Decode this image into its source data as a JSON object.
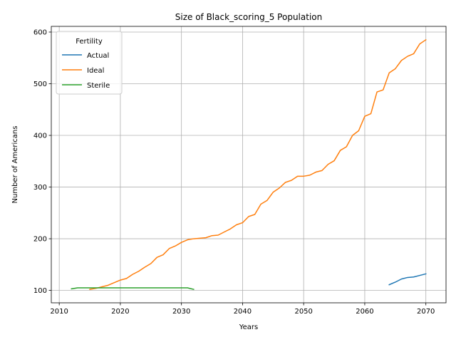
{
  "chart_data": {
    "type": "line",
    "title": "Size of Black_scoring_5 Population",
    "xlabel": "Years",
    "ylabel": "Number of Americans",
    "xlim": [
      2008.7,
      2073.3
    ],
    "ylim": [
      76,
      611
    ],
    "xticks": [
      2010,
      2020,
      2030,
      2040,
      2050,
      2060,
      2070
    ],
    "yticks": [
      100,
      200,
      300,
      400,
      500,
      600
    ],
    "grid": true,
    "legend": {
      "title": "Fertility",
      "placement": "top-left"
    },
    "series": [
      {
        "name": "Actual",
        "color": "#1f77b4",
        "x": [
          2064,
          2065,
          2066,
          2067,
          2068,
          2069,
          2070
        ],
        "y": [
          111,
          116,
          122,
          125,
          126,
          129,
          132
        ]
      },
      {
        "name": "Ideal",
        "color": "#ff7f0e",
        "x": [
          2015,
          2016,
          2017,
          2018,
          2019,
          2020,
          2021,
          2022,
          2023,
          2024,
          2025,
          2026,
          2027,
          2028,
          2029,
          2030,
          2031,
          2032,
          2033,
          2034,
          2035,
          2036,
          2037,
          2038,
          2039,
          2040,
          2041,
          2042,
          2043,
          2044,
          2045,
          2046,
          2047,
          2048,
          2049,
          2050,
          2051,
          2052,
          2053,
          2054,
          2055,
          2056,
          2057,
          2058,
          2059,
          2060,
          2061,
          2062,
          2063,
          2064,
          2065,
          2066,
          2067,
          2068,
          2069,
          2070
        ],
        "y": [
          102,
          104,
          107,
          110,
          115,
          120,
          123,
          131,
          137,
          145,
          152,
          164,
          169,
          181,
          186,
          193,
          198,
          200,
          201,
          202,
          206,
          207,
          213,
          219,
          227,
          231,
          243,
          247,
          267,
          274,
          290,
          298,
          309,
          313,
          321,
          321,
          323,
          329,
          332,
          344,
          351,
          371,
          378,
          400,
          409,
          437,
          442,
          484,
          488,
          521,
          529,
          545,
          553,
          558,
          577,
          585
        ]
      },
      {
        "name": "Sterile",
        "color": "#2ca02c",
        "x": [
          2012,
          2013,
          2014,
          2015,
          2016,
          2017,
          2018,
          2019,
          2020,
          2021,
          2022,
          2023,
          2024,
          2025,
          2026,
          2027,
          2028,
          2029,
          2030,
          2031,
          2032
        ],
        "y": [
          103,
          105,
          105,
          105,
          105,
          105,
          105,
          105,
          105,
          105,
          105,
          105,
          105,
          105,
          105,
          105,
          105,
          105,
          105,
          105,
          102
        ]
      }
    ]
  }
}
